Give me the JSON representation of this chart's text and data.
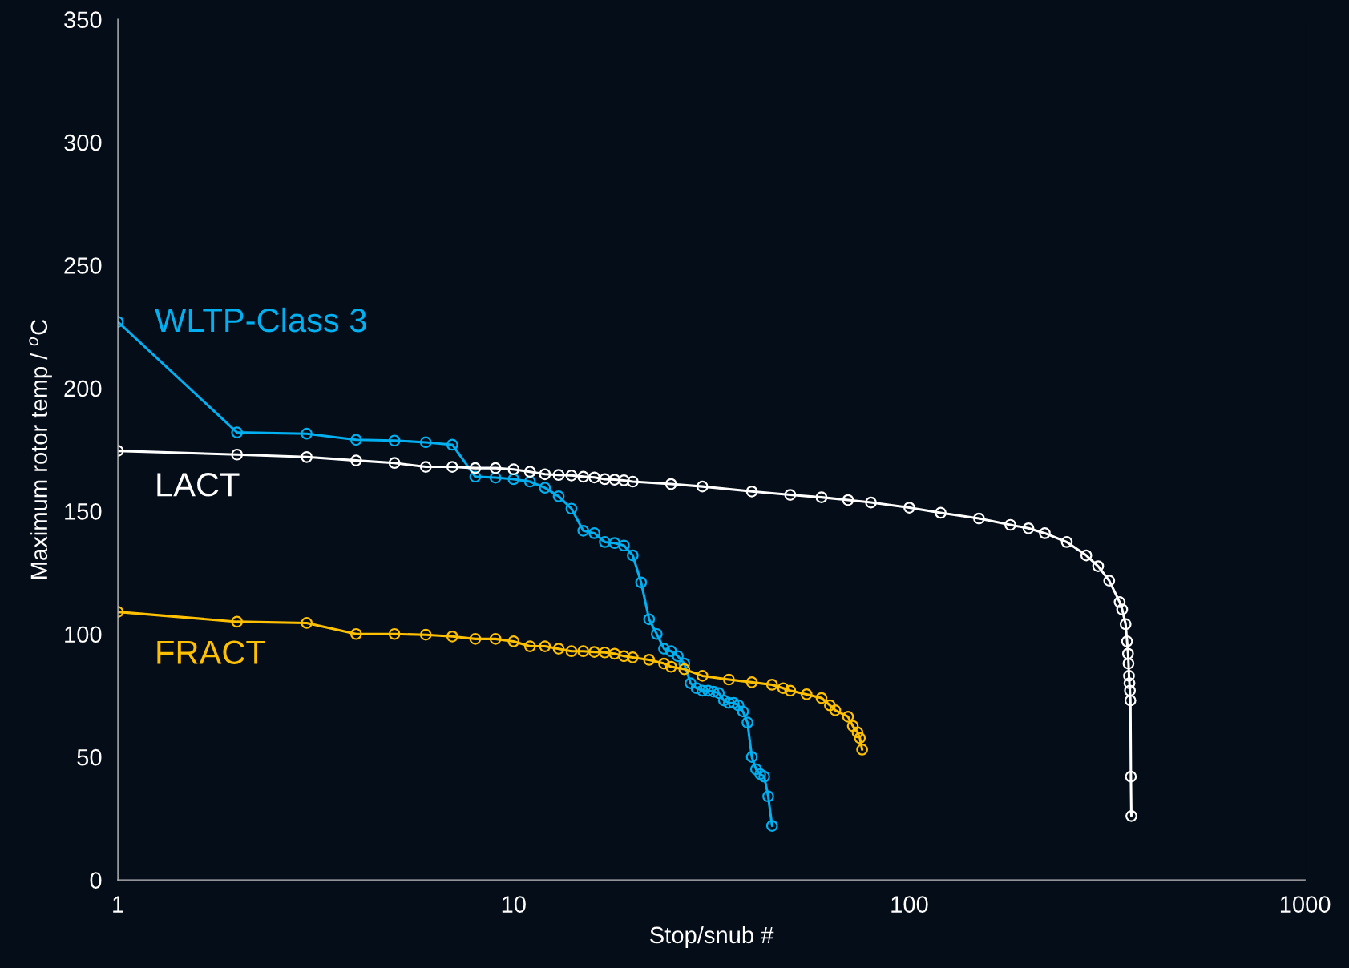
{
  "chart_data": {
    "type": "line",
    "xlabel": "Stop/snub #",
    "ylabel": "Maximum rotor temp / $^{o}$C",
    "log": "x",
    "xlim": [
      1,
      1000
    ],
    "xticks": [
      1,
      10,
      100,
      1000
    ],
    "ylim": [
      0,
      350
    ],
    "yticks": [
      0,
      50,
      100,
      150,
      200,
      250,
      300,
      350
    ],
    "grid": false,
    "legend": false,
    "marker": "circle",
    "line_style": "solid",
    "series": [
      {
        "name": "WLTP-Class 3",
        "color": "#00b0f0",
        "x": [
          1,
          2,
          3,
          4,
          5,
          6,
          7,
          8,
          9,
          10,
          11,
          12,
          13,
          14,
          15,
          16,
          17,
          18,
          19,
          20,
          21,
          22,
          23,
          24,
          25,
          26,
          27,
          28,
          29,
          30,
          31,
          32,
          33,
          34,
          35,
          36,
          37,
          38,
          39,
          40,
          41,
          42,
          43,
          44,
          45
        ],
        "values": [
          227,
          182,
          181.5,
          179,
          178.7,
          178,
          177,
          164,
          163.6,
          163,
          162,
          159.5,
          156,
          151,
          142,
          141,
          137.4,
          137,
          136,
          132,
          121,
          106,
          100,
          94,
          93,
          91,
          88,
          80,
          78,
          77,
          77,
          76.6,
          76,
          73,
          72,
          72,
          71,
          68.5,
          64,
          50,
          45,
          43,
          42,
          34,
          22
        ]
      },
      {
        "name": "LACT",
        "color": "#ffffff",
        "x": [
          1,
          2,
          3,
          4,
          5,
          6,
          7,
          8,
          9,
          10,
          11,
          12,
          13,
          14,
          15,
          16,
          17,
          18,
          19,
          20,
          25,
          30,
          40,
          50,
          60,
          70,
          80,
          100,
          120,
          150,
          180,
          200,
          220,
          250,
          280,
          300,
          320,
          340,
          345,
          352,
          355,
          357,
          358,
          359,
          360,
          361,
          362,
          363,
          364
        ],
        "values": [
          174.5,
          173,
          172,
          170.6,
          169.6,
          168,
          168,
          167.5,
          167.5,
          167,
          166,
          165,
          164.7,
          164.5,
          164,
          163.7,
          163,
          162.8,
          162.5,
          162,
          161,
          160,
          158,
          156.6,
          155.6,
          154.5,
          153.5,
          151.4,
          149.3,
          147,
          144.4,
          143,
          141,
          137.4,
          132,
          127.6,
          121.7,
          113,
          110,
          104,
          97,
          92,
          88,
          83,
          80,
          77,
          73,
          42,
          26
        ]
      },
      {
        "name": "FRACT",
        "color": "#ffc000",
        "x": [
          1,
          2,
          3,
          4,
          5,
          6,
          7,
          8,
          9,
          10,
          11,
          12,
          13,
          14,
          15,
          16,
          17,
          18,
          19,
          20,
          22,
          24,
          25,
          27,
          30,
          35,
          40,
          45,
          48,
          50,
          55,
          60,
          63,
          65,
          70,
          72,
          74,
          75,
          76
        ],
        "values": [
          109,
          105,
          104.5,
          100,
          100,
          99.7,
          99,
          98,
          98,
          97,
          95,
          95,
          94,
          93,
          93,
          92.7,
          92.5,
          92,
          91,
          90.5,
          89.5,
          88,
          86.7,
          85.7,
          83,
          81.5,
          80.4,
          79.4,
          78,
          77,
          75.5,
          74,
          71,
          69,
          66.4,
          62.6,
          60,
          57.7,
          53
        ]
      }
    ]
  }
}
